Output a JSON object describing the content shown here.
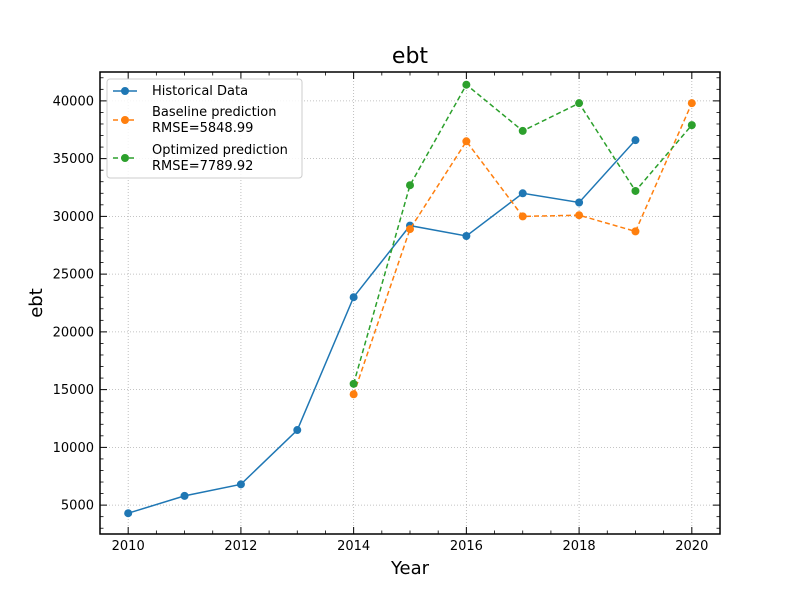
{
  "chart_data": {
    "type": "line",
    "title": "ebt",
    "xlabel": "Year",
    "ylabel": "ebt",
    "xlim": [
      2009.5,
      2020.5
    ],
    "ylim": [
      2500,
      42500
    ],
    "xticks": [
      2010,
      2012,
      2014,
      2016,
      2018,
      2020
    ],
    "yticks": [
      5000,
      10000,
      15000,
      20000,
      25000,
      30000,
      35000,
      40000
    ],
    "grid": true,
    "legend_position": "upper-left",
    "series": [
      {
        "name": "Historical Data",
        "color": "#1f77b4",
        "style": "solid",
        "x": [
          2010,
          2011,
          2012,
          2013,
          2014,
          2015,
          2016,
          2017,
          2018,
          2019
        ],
        "y": [
          4300,
          5800,
          6800,
          11500,
          23000,
          29200,
          28300,
          32000,
          31200,
          36600
        ]
      },
      {
        "name": "Baseline prediction",
        "name_line2": "RMSE=5848.99",
        "color": "#ff7f0e",
        "style": "dashed",
        "x": [
          2014,
          2015,
          2016,
          2017,
          2018,
          2019,
          2020
        ],
        "y": [
          14600,
          28900,
          36500,
          30000,
          30100,
          28700,
          39800
        ]
      },
      {
        "name": "Optimized prediction",
        "name_line2": "RMSE=7789.92",
        "color": "#2ca02c",
        "style": "dashed",
        "x": [
          2014,
          2015,
          2016,
          2017,
          2018,
          2019,
          2020
        ],
        "y": [
          15500,
          32700,
          41400,
          37400,
          39800,
          32200,
          37900
        ]
      }
    ]
  }
}
